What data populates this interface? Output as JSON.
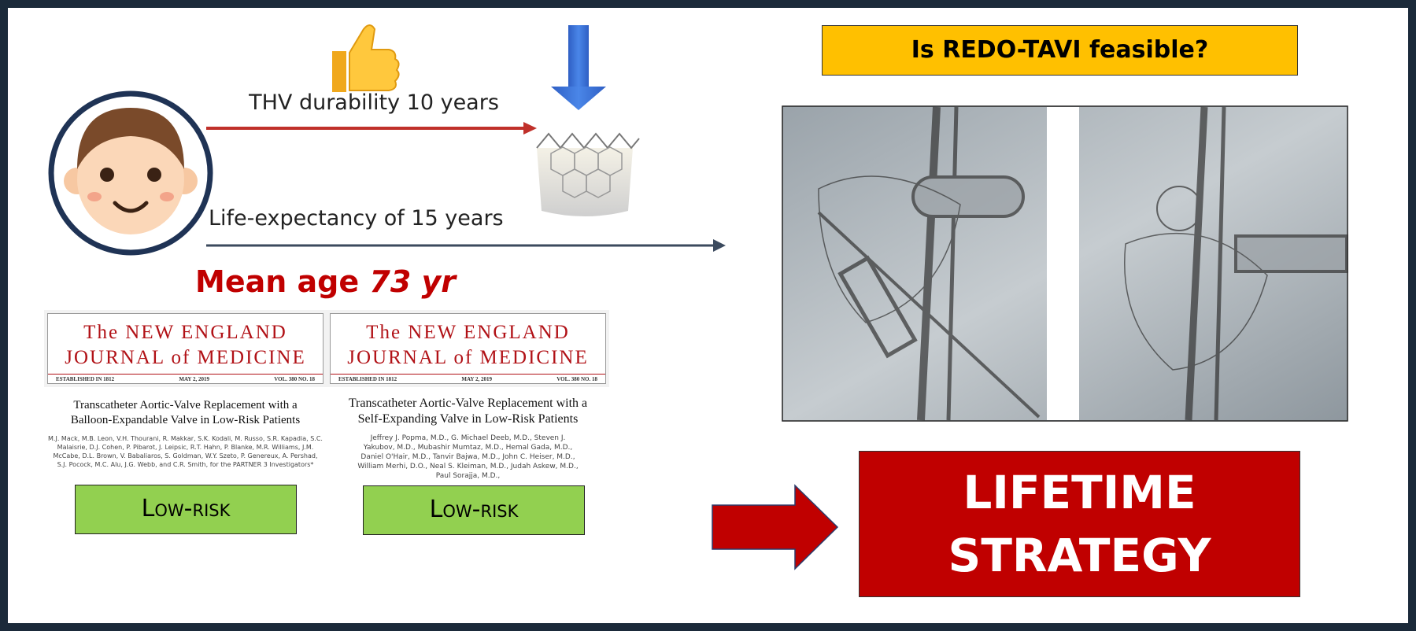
{
  "thv_label": "THV durability 10 years",
  "life_label": "Life-expectancy of 15 years",
  "mean_age": {
    "prefix": "Mean age",
    "value": "73 yr"
  },
  "articles": [
    {
      "masthead_1": "The NEW ENGLAND",
      "masthead_2": "JOURNAL of MEDICINE",
      "established": "ESTABLISHED IN 1812",
      "date": "MAY 2, 2019",
      "volume": "VOL. 380 NO. 18",
      "title": "Transcatheter Aortic-Valve Replacement with a Balloon-Expandable Valve in Low-Risk Patients",
      "authors": "M.J. Mack, M.B. Leon, V.H. Thourani, R. Makkar, S.K. Kodali, M. Russo, S.R. Kapadia, S.C. Malaisrie, D.J. Cohen, P. Pibarot, J. Leipsic, R.T. Hahn, P. Blanke, M.R. Williams, J.M. McCabe, D.L. Brown, V. Babaliaros, S. Goldman, W.Y. Szeto, P. Genereux, A. Pershad, S.J. Pocock, M.C. Alu, J.G. Webb, and C.R. Smith, for the PARTNER 3 Investigators*",
      "risk": "Low-risk"
    },
    {
      "masthead_1": "The NEW ENGLAND",
      "masthead_2": "JOURNAL of MEDICINE",
      "established": "ESTABLISHED IN 1812",
      "date": "MAY 2, 2019",
      "volume": "VOL. 380 NO. 18",
      "title": "Transcatheter Aortic-Valve Replacement with a Self-Expanding Valve in Low-Risk Patients",
      "authors": "Jeffrey J. Popma, M.D., G. Michael Deeb, M.D., Steven J. Yakubov, M.D., Mubashir Mumtaz, M.D., Hemal Gada, M.D., Daniel O'Hair, M.D., Tanvir Bajwa, M.D., John C. Heiser, M.D., William Merhi, D.O., Neal S. Kleiman, M.D., Judah Askew, M.D., Paul Sorajja, M.D.,",
      "risk": "Low-risk"
    }
  ],
  "question": "Is REDO-TAVI feasible?",
  "conclusion_1": "LIFETIME",
  "conclusion_2": "STRATEGY"
}
